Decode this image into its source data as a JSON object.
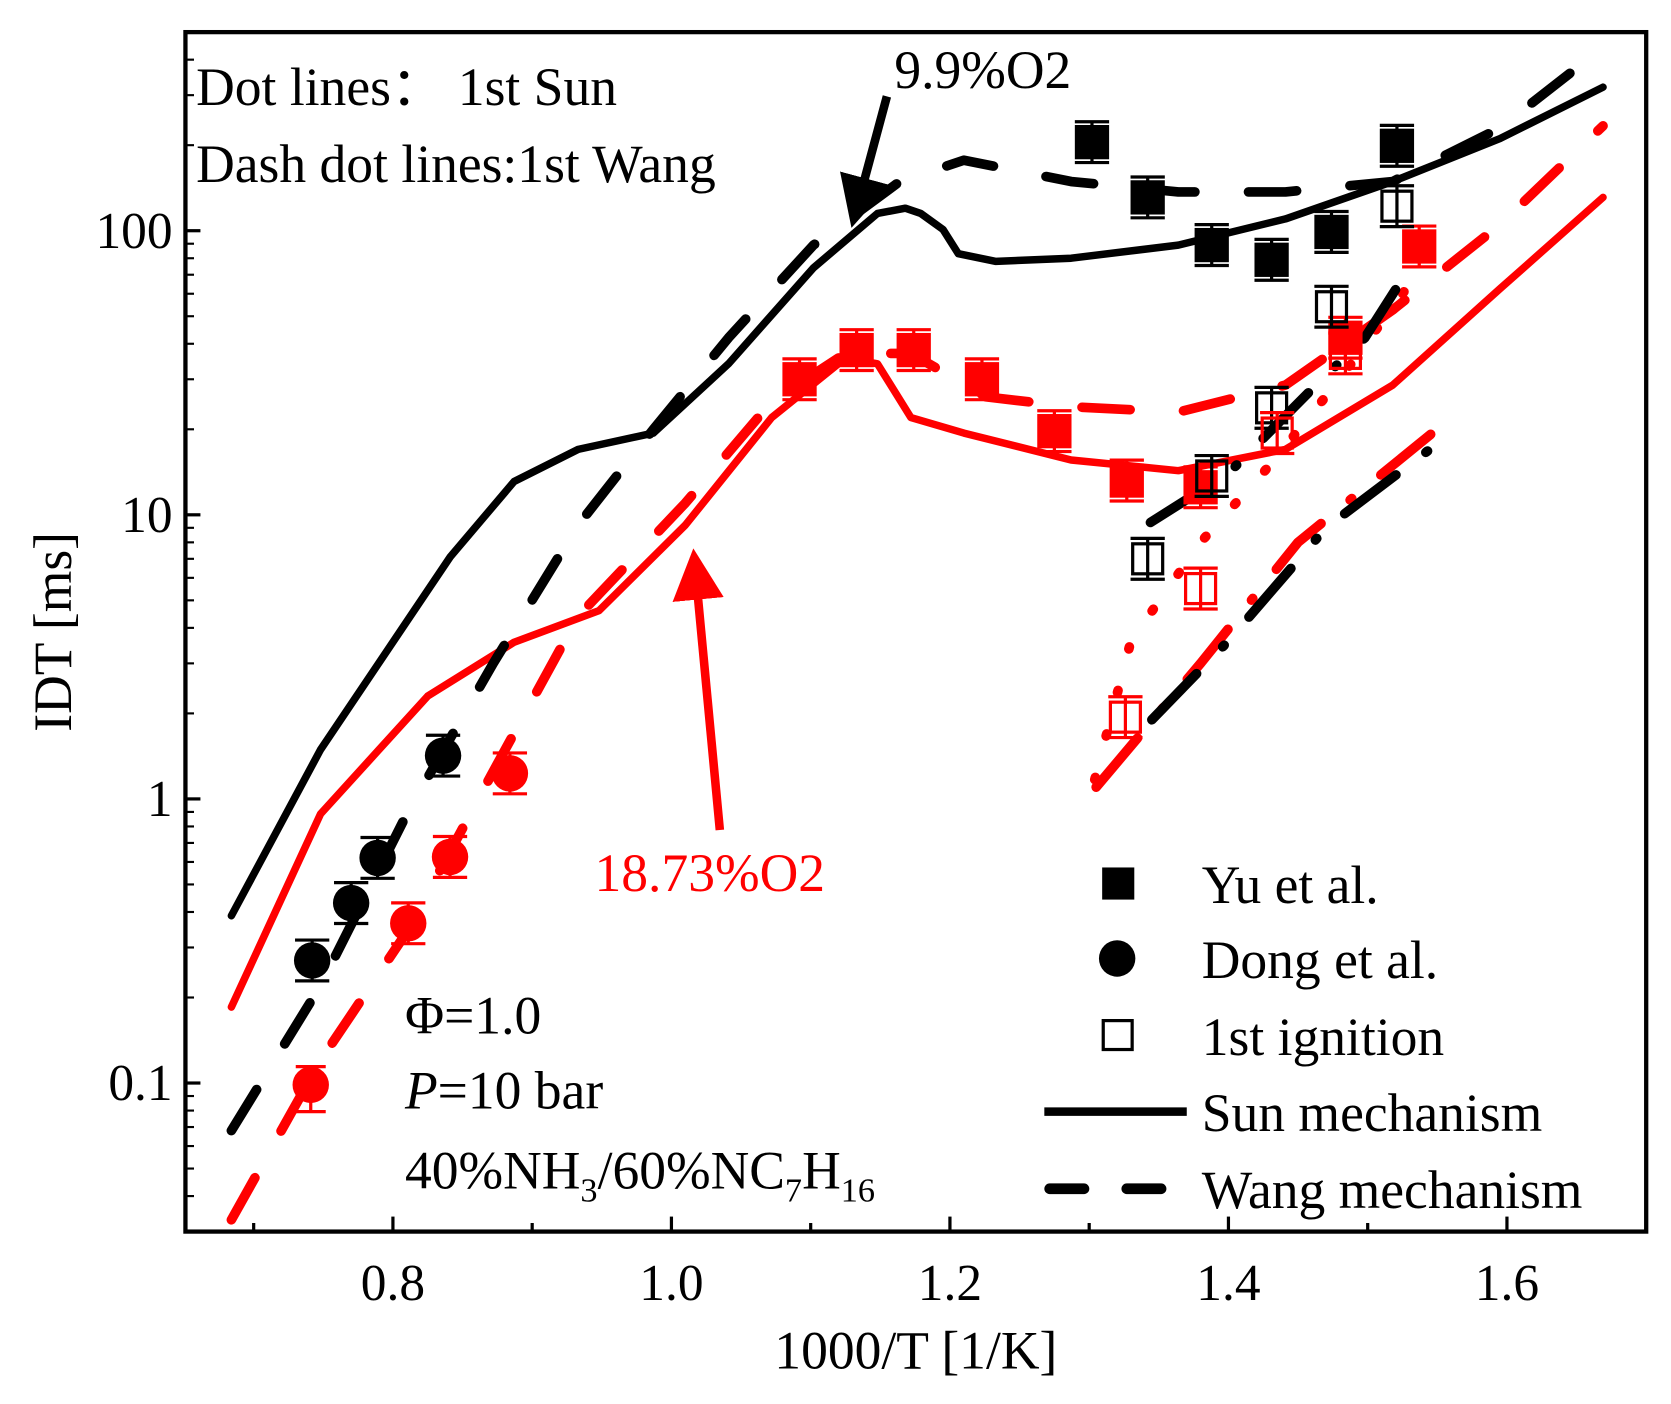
{
  "chart_data": {
    "type": "scatter",
    "xlabel": "1000/T [1/K]",
    "ylabel": "IDT [ms]",
    "xlim": [
      0.651,
      1.7
    ],
    "ylim": [
      0.03,
      500
    ],
    "yscale": "log",
    "x_ticks": [
      "0.8",
      "1.0",
      "1.2",
      "1.4",
      "1.6"
    ],
    "x_tick_values": [
      0.8,
      1.0,
      1.2,
      1.4,
      1.6
    ],
    "y_ticks": [
      "0.1",
      "1",
      "10",
      "100"
    ],
    "y_tick_values": [
      0.1,
      1,
      10,
      100
    ],
    "grid": false,
    "legend_placement": "bottom-right",
    "colors": {
      "o2_9_9": "#000000",
      "o2_18_73": "#ff0000"
    },
    "notes": {
      "dot_lines": "Dot lines：  1st Sun",
      "dash_dot_lines": "Dash dot lines:1st Wang",
      "label_9_9": "9.9%O2",
      "label_18_73": "18.73%O2",
      "phi": "Φ=1.0",
      "pressure_var": "P",
      "pressure_rest": "=10 bar",
      "mixture_parts": [
        "40%NH",
        "3",
        "/60%NC",
        "7",
        "H",
        "16"
      ]
    },
    "legend": [
      {
        "label": "Yu et al.",
        "marker": "filled-square"
      },
      {
        "label": "Dong et al.",
        "marker": "filled-circle"
      },
      {
        "label": "1st ignition",
        "marker": "open-square"
      },
      {
        "label": "Sun mechanism",
        "line": "solid"
      },
      {
        "label": "Wang mechanism",
        "line": "dashed"
      }
    ],
    "markers": [
      {
        "name": "Yu 9.9%O2",
        "marker": "filled-square",
        "color": "#000000",
        "err_frac": 0.18,
        "x": [
          1.302,
          1.342,
          1.388,
          1.431,
          1.474,
          1.521
        ],
        "y": [
          205,
          131,
          89,
          79,
          99,
          199
        ]
      },
      {
        "name": "Yu 18.73%O2",
        "marker": "filled-square",
        "color": "#ff0000",
        "err_frac": 0.18,
        "x": [
          1.092,
          1.133,
          1.174,
          1.223,
          1.275,
          1.327,
          1.38,
          1.484,
          1.537
        ],
        "y": [
          30,
          38,
          38,
          30,
          19.7,
          13.2,
          12.5,
          42,
          88
        ]
      },
      {
        "name": "1st ignition 9.9%O2",
        "marker": "open-square",
        "color": "#000000",
        "err_frac": 0.18,
        "x": [
          1.342,
          1.388,
          1.431,
          1.474,
          1.521
        ],
        "y": [
          7.0,
          13.7,
          23.8,
          54,
          122
        ]
      },
      {
        "name": "1st ignition 18.73%O2",
        "marker": "open-square",
        "color": "#ff0000",
        "err_frac": 0.18,
        "x": [
          1.326,
          1.38,
          1.435,
          1.484
        ],
        "y": [
          1.94,
          5.5,
          19.4,
          37
        ]
      },
      {
        "name": "Dong 9.9%O2",
        "marker": "filled-circle",
        "color": "#000000",
        "err_frac": 0.18,
        "x": [
          0.742,
          0.77,
          0.789,
          0.836
        ],
        "y": [
          0.27,
          0.43,
          0.62,
          1.42
        ]
      },
      {
        "name": "Dong 18.73%O2",
        "marker": "filled-circle",
        "color": "#ff0000",
        "err_frac": 0.18,
        "x": [
          0.811,
          0.841,
          0.884
        ],
        "y": [
          0.365,
          0.625,
          1.23
        ]
      }
    ],
    "lines": [
      {
        "name": "Sun 9.9%O2",
        "style": "solid",
        "color": "#000000",
        "x": [
          0.684,
          0.748,
          0.841,
          0.887,
          0.933,
          0.987,
          1.041,
          1.102,
          1.148,
          1.168,
          1.179,
          1.195,
          1.206,
          1.233,
          1.287,
          1.364,
          1.441,
          1.518,
          1.595,
          1.669
        ],
        "y": [
          0.388,
          1.49,
          7.1,
          13.1,
          17.0,
          19.4,
          34,
          74,
          115,
          120,
          115,
          101,
          83,
          78,
          80,
          89,
          110,
          149,
          211,
          320
        ]
      },
      {
        "name": "Sun 18.73%O2",
        "style": "solid",
        "color": "#ff0000",
        "x": [
          0.684,
          0.748,
          0.825,
          0.887,
          0.948,
          1.01,
          1.072,
          1.125,
          1.148,
          1.172,
          1.21,
          1.287,
          1.364,
          1.441,
          1.518,
          1.595,
          1.669
        ],
        "y": [
          0.185,
          0.885,
          2.3,
          3.56,
          4.6,
          9.2,
          22,
          35.6,
          34,
          22,
          19.4,
          15.6,
          14.3,
          17,
          28.6,
          62.5,
          131
        ]
      },
      {
        "name": "Wang 9.9%O2",
        "style": "dashed",
        "color": "#000000",
        "x": [
          0.684,
          0.748,
          0.81,
          0.872,
          0.933,
          0.987,
          1.041,
          1.102,
          1.164,
          1.21,
          1.287,
          1.364,
          1.441,
          1.518,
          1.595,
          1.669
        ],
        "y": [
          0.068,
          0.22,
          0.885,
          3.0,
          9.2,
          20,
          42,
          89,
          149,
          177,
          149,
          137,
          137,
          149,
          230,
          442
        ]
      },
      {
        "name": "Wang 18.73%O2",
        "style": "dashed",
        "color": "#ff0000",
        "x": [
          0.684,
          0.748,
          0.81,
          0.872,
          0.933,
          1.01,
          1.072,
          1.125,
          1.172,
          1.226,
          1.287,
          1.364,
          1.441,
          1.518,
          1.595,
          1.669
        ],
        "y": [
          0.033,
          0.12,
          0.34,
          1.25,
          4.4,
          11,
          25,
          37,
          37,
          26,
          24,
          23,
          28.6,
          52.6,
          105,
          234
        ]
      },
      {
        "name": "1st Sun 18.73%O2",
        "style": "dotted",
        "color": "#ff0000",
        "x": [
          1.304,
          1.33,
          1.38,
          1.43,
          1.48,
          1.535
        ],
        "y": [
          1.17,
          3.6,
          8,
          15,
          30,
          70
        ]
      },
      {
        "name": "1st Wang 9.9%O2",
        "style": "dashdot",
        "color": "#000000",
        "x": [
          1.344,
          1.4,
          1.461,
          1.498,
          1.52
        ],
        "y": [
          9.4,
          14,
          28,
          42,
          62
        ]
      },
      {
        "name": "1st Wang 18.73%O2 (low)",
        "style": "dashdot",
        "color": "#ff0000",
        "x": [
          1.305,
          1.38,
          1.45,
          1.56
        ],
        "y": [
          1.1,
          3.0,
          8.0,
          22
        ]
      },
      {
        "name": "1st Wang 9.9%O2 (low)",
        "style": "dashdot",
        "color": "#000000",
        "x": [
          1.345,
          1.4,
          1.47,
          1.56
        ],
        "y": [
          1.9,
          3.6,
          9.0,
          19.4
        ]
      }
    ]
  }
}
